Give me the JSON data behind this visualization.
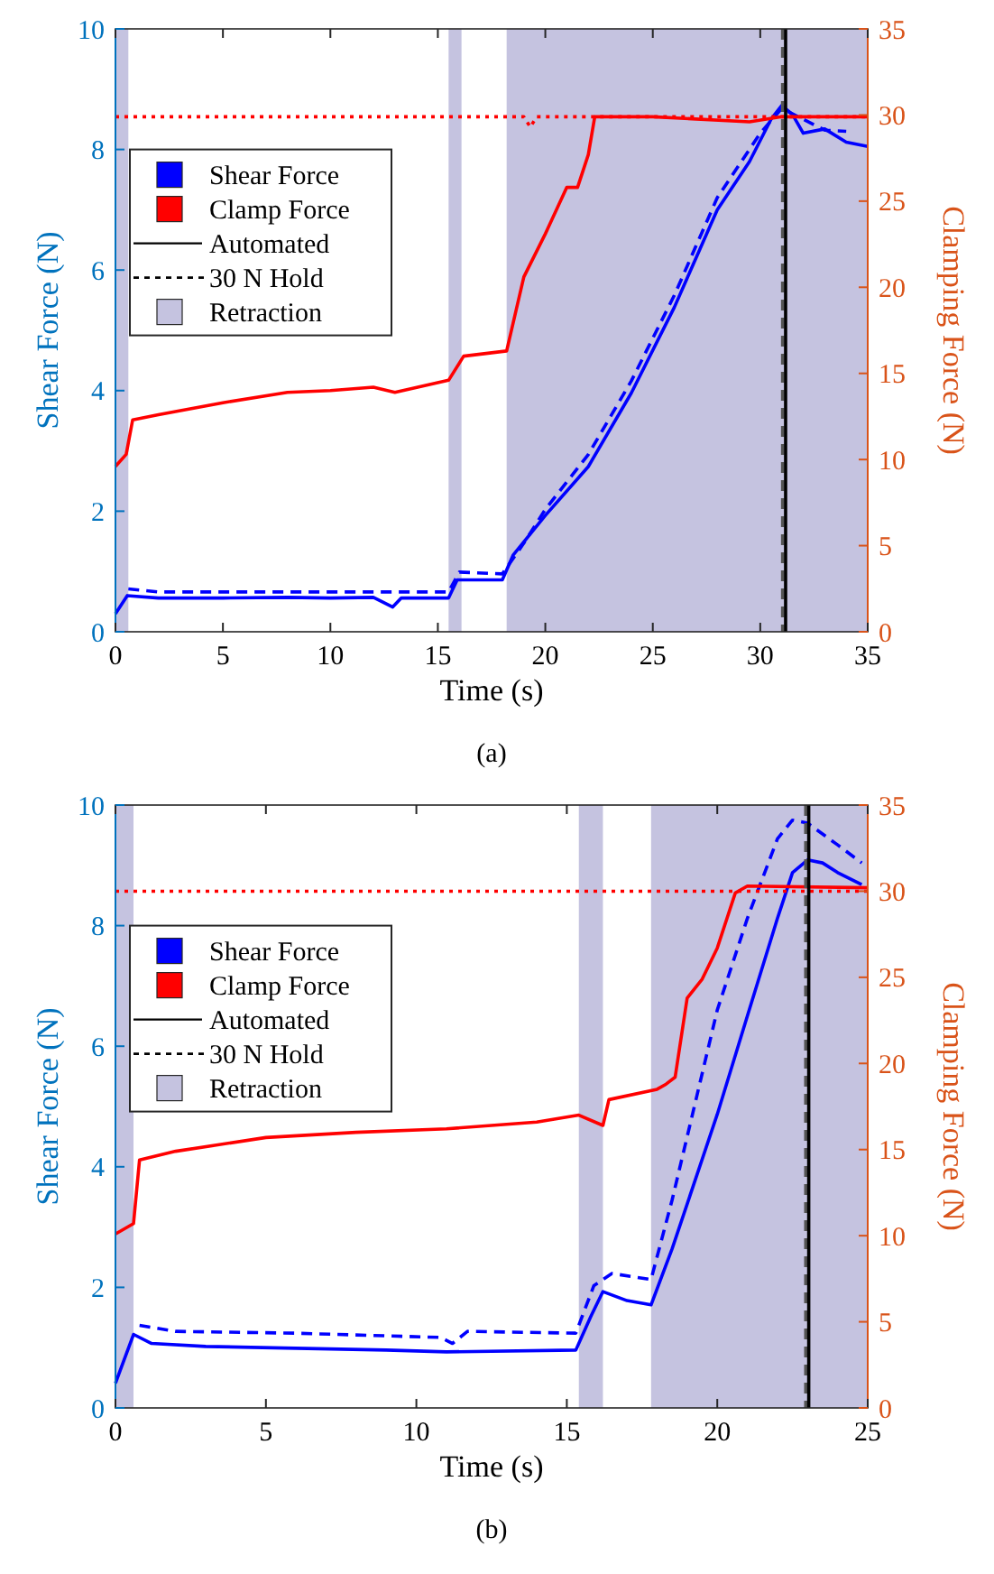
{
  "chart_data": [
    {
      "type": "line",
      "title": "(a)",
      "xlabel": "Time (s)",
      "ylabel": "Shear Force (N)",
      "y2label": "Clamping Force (N)",
      "xlim": [
        0,
        35
      ],
      "xticks": [
        0,
        5,
        10,
        15,
        20,
        25,
        30,
        35
      ],
      "ylim": [
        0,
        10
      ],
      "yticks": [
        0,
        2,
        4,
        6,
        8,
        10
      ],
      "y2lim": [
        0,
        35
      ],
      "y2ticks": [
        0,
        5,
        10,
        15,
        20,
        25,
        30,
        35
      ],
      "legend": "top left",
      "annotations": [
        "Automated",
        "30 N Hold"
      ],
      "bands": [
        {
          "axis": "x",
          "from": 0,
          "to": 0.6,
          "label": "Retraction",
          "color": "#c5c3e0"
        },
        {
          "axis": "x",
          "from": 15.5,
          "to": 16.1,
          "color": "#c5c3e0"
        },
        {
          "axis": "x",
          "from": 18.2,
          "to": 35,
          "color": "#c5c3e0"
        }
      ],
      "ref_lines": [
        {
          "axis": "x",
          "value": 31.04,
          "color": "#555555",
          "line_style": "dashed"
        },
        {
          "axis": "x",
          "value": 31.18,
          "color": "#000000",
          "line_style": "solid"
        }
      ],
      "series": [
        {
          "name": "Shear Force",
          "color": "#0000ff",
          "line_style": "solid",
          "x": [
            0,
            0.55,
            2,
            5,
            8,
            10,
            12,
            12.9,
            13.3,
            15.5,
            15.9,
            18,
            18.5,
            20,
            22,
            24,
            26,
            28,
            29.5,
            30.5,
            31,
            31.5,
            32,
            33,
            34,
            35
          ],
          "values": [
            0.3,
            0.6,
            0.56,
            0.56,
            0.57,
            0.56,
            0.57,
            0.41,
            0.56,
            0.56,
            0.86,
            0.86,
            1.27,
            1.93,
            2.74,
            3.96,
            5.38,
            7.0,
            7.8,
            8.5,
            8.73,
            8.58,
            8.27,
            8.34,
            8.12,
            8.05
          ]
        },
        {
          "color": "#0000ff",
          "line_style": "dashed",
          "x": [
            0.6,
            2,
            5,
            10,
            15.5,
            16,
            18,
            19,
            20,
            22,
            24,
            26,
            28,
            30,
            31,
            32,
            33,
            34
          ],
          "values": [
            0.71,
            0.66,
            0.66,
            0.66,
            0.66,
            0.99,
            0.96,
            1.47,
            2.03,
            2.94,
            4.16,
            5.58,
            7.2,
            8.27,
            8.68,
            8.5,
            8.32,
            8.3
          ]
        },
        {
          "name": "Clamp Force",
          "color": "#ff0000",
          "line_style": "solid",
          "axis": "y2",
          "x": [
            0,
            0.5,
            0.8,
            2,
            5,
            8,
            10,
            12,
            13,
            15.5,
            16.2,
            18.2,
            19,
            20,
            21,
            21.5,
            22,
            22.3,
            25,
            29.5,
            31,
            35
          ],
          "values": [
            9.6,
            10.3,
            12.3,
            12.6,
            13.3,
            13.9,
            14.0,
            14.2,
            13.9,
            14.6,
            16.0,
            16.3,
            20.6,
            23.1,
            25.8,
            25.8,
            27.7,
            29.9,
            29.9,
            29.6,
            29.9,
            29.9
          ]
        },
        {
          "color": "#ff0000",
          "line_style": "dotted",
          "axis": "y2",
          "x": [
            0,
            5,
            10,
            15,
            19,
            19.3,
            19.6,
            25,
            30,
            35
          ],
          "values": [
            29.9,
            29.9,
            29.9,
            29.9,
            29.9,
            29.3,
            29.9,
            29.9,
            29.9,
            29.9
          ]
        }
      ]
    },
    {
      "type": "line",
      "title": "(b)",
      "xlabel": "Time (s)",
      "ylabel": "Shear Force (N)",
      "y2label": "Clamping Force (N)",
      "xlim": [
        0,
        25
      ],
      "xticks": [
        0,
        5,
        10,
        15,
        20,
        25
      ],
      "ylim": [
        0,
        10
      ],
      "yticks": [
        0,
        2,
        4,
        6,
        8,
        10
      ],
      "y2lim": [
        0,
        35
      ],
      "y2ticks": [
        0,
        5,
        10,
        15,
        20,
        25,
        30,
        35
      ],
      "legend": "top left",
      "annotations": [
        "Automated",
        "30 N Hold"
      ],
      "bands": [
        {
          "axis": "x",
          "from": 0,
          "to": 0.6,
          "label": "Retraction",
          "color": "#c5c3e0"
        },
        {
          "axis": "x",
          "from": 15.4,
          "to": 16.2,
          "color": "#c5c3e0"
        },
        {
          "axis": "x",
          "from": 17.8,
          "to": 25,
          "color": "#c5c3e0"
        }
      ],
      "ref_lines": [
        {
          "axis": "x",
          "value": 22.94,
          "color": "#555555",
          "line_style": "dashed"
        },
        {
          "axis": "x",
          "value": 23.04,
          "color": "#000000",
          "line_style": "solid"
        }
      ],
      "series": [
        {
          "name": "Shear Force",
          "color": "#0000ff",
          "line_style": "solid",
          "x": [
            0,
            0.6,
            1.2,
            3,
            6,
            9,
            11,
            15.3,
            15.8,
            16.2,
            17,
            17.8,
            18.5,
            20,
            21,
            22,
            22.5,
            23,
            23.5,
            24,
            24.8
          ],
          "values": [
            0.41,
            1.22,
            1.07,
            1.02,
            0.99,
            0.96,
            0.93,
            0.96,
            1.52,
            1.93,
            1.78,
            1.71,
            2.64,
            4.87,
            6.5,
            8.12,
            8.88,
            9.09,
            9.04,
            8.88,
            8.68
          ]
        },
        {
          "color": "#0000ff",
          "line_style": "dashed",
          "x": [
            0.8,
            2,
            6,
            10.8,
            11.2,
            11.7,
            15.3,
            15.9,
            16.5,
            17.8,
            18.5,
            20,
            21,
            22,
            22.5,
            23,
            24,
            24.8
          ],
          "values": [
            1.37,
            1.27,
            1.24,
            1.17,
            1.07,
            1.27,
            1.24,
            2.03,
            2.23,
            2.13,
            3.45,
            6.6,
            8.12,
            9.44,
            9.75,
            9.7,
            9.34,
            9.04
          ]
        },
        {
          "name": "Clamp Force",
          "color": "#ff0000",
          "line_style": "solid",
          "axis": "y2",
          "x": [
            0,
            0.6,
            0.8,
            2,
            5,
            8,
            11,
            14,
            15.4,
            16.2,
            16.4,
            18,
            18.3,
            18.6,
            19,
            19.5,
            20,
            20.6,
            21,
            25
          ],
          "values": [
            10.1,
            10.7,
            14.4,
            14.9,
            15.7,
            16.0,
            16.2,
            16.6,
            17.0,
            16.4,
            17.9,
            18.5,
            18.8,
            19.2,
            23.8,
            24.9,
            26.7,
            29.9,
            30.3,
            30.2
          ]
        },
        {
          "color": "#ff0000",
          "line_style": "dotted",
          "axis": "y2",
          "x": [
            0,
            5,
            10,
            15,
            20,
            25
          ],
          "values": [
            30,
            30,
            30,
            30,
            30,
            30
          ]
        }
      ]
    }
  ]
}
